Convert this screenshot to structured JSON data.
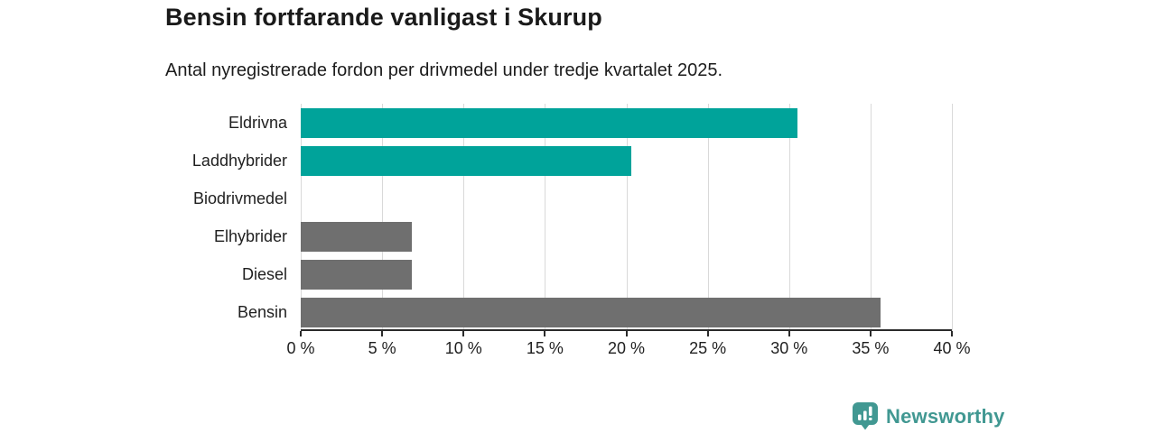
{
  "header": {
    "title": "Bensin fortfarande vanligast i Skurup",
    "subtitle": "Antal nyregistrerade fordon per drivmedel under tredje kvartalet 2025."
  },
  "chart_data": {
    "type": "bar",
    "orientation": "horizontal",
    "categories": [
      "Eldrivna",
      "Laddhybrider",
      "Biodrivmedel",
      "Elhybrider",
      "Diesel",
      "Bensin"
    ],
    "values": [
      30.5,
      20.3,
      0,
      6.8,
      6.8,
      35.6
    ],
    "unit": "%",
    "bar_colors": [
      "#00a39a",
      "#00a39a",
      "#00a39a",
      "#6f6f6f",
      "#6f6f6f",
      "#6f6f6f"
    ],
    "xlim": [
      0,
      40
    ],
    "x_ticks": [
      0,
      5,
      10,
      15,
      20,
      25,
      30,
      35,
      40
    ],
    "x_tick_labels": [
      "0 %",
      "5 %",
      "10 %",
      "15 %",
      "20 %",
      "25 %",
      "30 %",
      "35 %",
      "40 %"
    ],
    "grid": "vertical",
    "legend": "none"
  },
  "colors": {
    "accent_teal": "#00a39a",
    "neutral_gray": "#6f6f6f",
    "gridline": "#d9d9d9",
    "axis": "#2b2b2b",
    "text": "#1c1c1c",
    "brand_teal": "#419892"
  },
  "branding": {
    "logo_text": "Newsworthy",
    "logo_icon": "bar-chart-pin-icon"
  }
}
